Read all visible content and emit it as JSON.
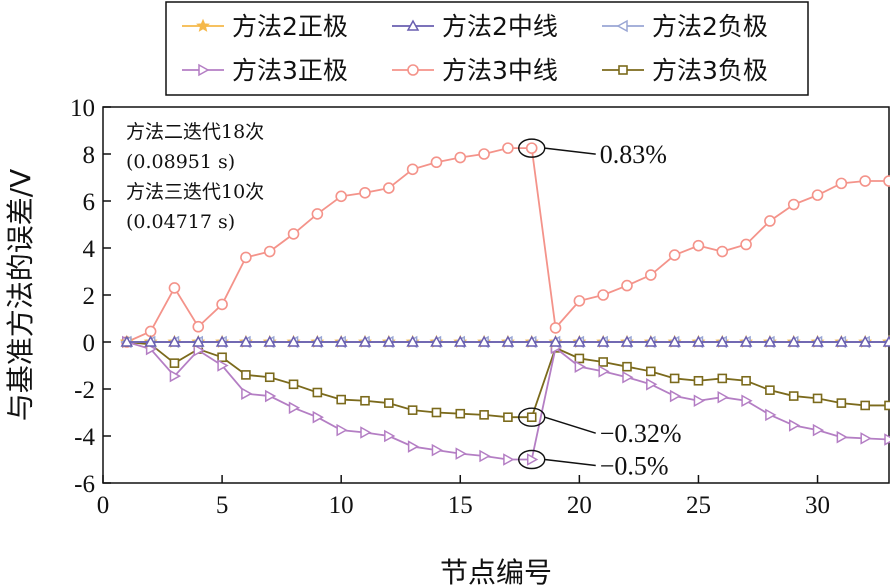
{
  "chart_data": {
    "type": "line",
    "title": "",
    "xlabel": "节点编号",
    "ylabel": "与基准方法的误差/V",
    "xlim": [
      0,
      33
    ],
    "ylim": [
      -6,
      10
    ],
    "xticks": [
      0,
      5,
      10,
      15,
      20,
      25,
      30
    ],
    "yticks": [
      -6,
      -4,
      -2,
      0,
      2,
      4,
      6,
      8,
      10
    ],
    "grid": false,
    "legend_position": "top",
    "x": [
      1,
      2,
      3,
      4,
      5,
      6,
      7,
      8,
      9,
      10,
      11,
      12,
      13,
      14,
      15,
      16,
      17,
      18,
      19,
      20,
      21,
      22,
      23,
      24,
      25,
      26,
      27,
      28,
      29,
      30,
      31,
      32,
      33
    ],
    "series": [
      {
        "name": "方法2正极",
        "color": "#f5b84a",
        "marker": "star",
        "values": [
          0,
          0,
          0,
          0,
          0,
          0,
          0,
          0,
          0,
          0,
          0,
          0,
          0,
          0,
          0,
          0,
          0,
          0,
          0,
          0,
          0,
          0,
          0,
          0,
          0,
          0,
          0,
          0,
          0,
          0,
          0,
          0,
          0
        ]
      },
      {
        "name": "方法2中线",
        "color": "#6a5fb0",
        "marker": "triangle-up",
        "values": [
          0,
          0,
          0,
          0,
          0,
          0,
          0,
          0,
          0,
          0,
          0,
          0,
          0,
          0,
          0,
          0,
          0,
          0,
          0,
          0,
          0,
          0,
          0,
          0,
          0,
          0,
          0,
          0,
          0,
          0,
          0,
          0,
          0
        ]
      },
      {
        "name": "方法2负极",
        "color": "#9aa6d4",
        "marker": "triangle-left",
        "values": [
          0,
          0,
          0,
          0,
          0,
          0,
          0,
          0,
          0,
          0,
          0,
          0,
          0,
          0,
          0,
          0,
          0,
          0,
          0,
          0,
          0,
          0,
          0,
          0,
          0,
          0,
          0,
          0,
          0,
          0,
          0,
          0,
          0
        ]
      },
      {
        "name": "方法3正极",
        "color": "#b47ec4",
        "marker": "triangle-right",
        "values": [
          0,
          -0.3,
          -1.45,
          -0.35,
          -1.0,
          -2.2,
          -2.3,
          -2.8,
          -3.2,
          -3.75,
          -3.85,
          -4.0,
          -4.45,
          -4.6,
          -4.75,
          -4.85,
          -5.0,
          -5.0,
          -0.25,
          -1.05,
          -1.25,
          -1.5,
          -1.8,
          -2.3,
          -2.5,
          -2.35,
          -2.5,
          -3.1,
          -3.55,
          -3.75,
          -4.05,
          -4.1,
          -4.15
        ]
      },
      {
        "name": "方法3中线",
        "color": "#f4938a",
        "marker": "circle",
        "values": [
          0,
          0.45,
          2.3,
          0.65,
          1.6,
          3.6,
          3.85,
          4.6,
          5.45,
          6.2,
          6.35,
          6.55,
          7.35,
          7.65,
          7.85,
          8.0,
          8.25,
          8.25,
          0.6,
          1.75,
          2.0,
          2.4,
          2.85,
          3.7,
          4.1,
          3.85,
          4.15,
          5.15,
          5.85,
          6.25,
          6.75,
          6.85,
          6.85
        ]
      },
      {
        "name": "方法3负极",
        "color": "#7b6a1c",
        "marker": "square",
        "values": [
          0,
          -0.1,
          -0.9,
          -0.3,
          -0.65,
          -1.4,
          -1.5,
          -1.8,
          -2.15,
          -2.45,
          -2.5,
          -2.6,
          -2.9,
          -3.0,
          -3.05,
          -3.1,
          -3.2,
          -3.2,
          -0.25,
          -0.7,
          -0.85,
          -1.05,
          -1.25,
          -1.55,
          -1.65,
          -1.55,
          -1.65,
          -2.05,
          -2.3,
          -2.4,
          -2.6,
          -2.7,
          -2.7
        ]
      }
    ],
    "annotations": [
      {
        "text": "方法二迭代18次"
      },
      {
        "text": "(0.08951 s)"
      },
      {
        "text": "方法三迭代10次"
      },
      {
        "text": "(0.04717 s)"
      }
    ],
    "callouts": [
      {
        "text": "0.83%",
        "x": 18,
        "y": 8.25
      },
      {
        "text": "−0.32%",
        "x": 18,
        "y": -3.2
      },
      {
        "text": "−0.5%",
        "x": 18,
        "y": -5.0
      }
    ]
  }
}
